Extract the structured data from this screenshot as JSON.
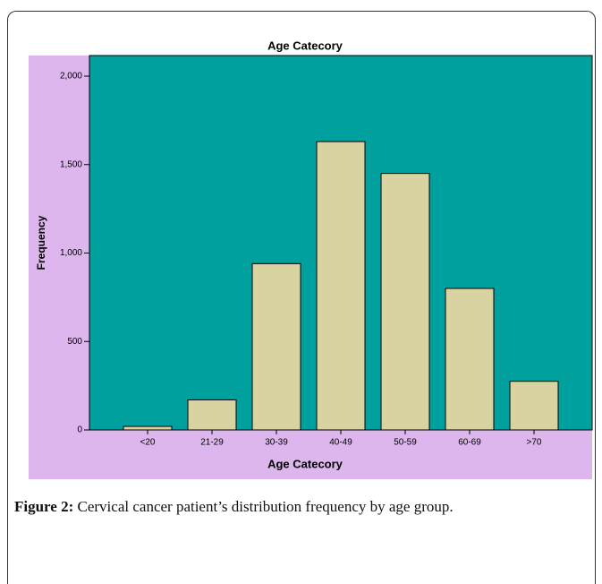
{
  "chart_data": {
    "type": "bar",
    "title": "Age Catecory",
    "x_label": "Age Catecory",
    "y_label": "Frequency",
    "categories": [
      "<20",
      "21-29",
      "30-39",
      "40-49",
      "50-59",
      "60-69",
      ">70"
    ],
    "values": [
      20,
      170,
      940,
      1630,
      1450,
      800,
      275
    ],
    "color": "#d9d3a1",
    "ylim": [
      0,
      2000
    ],
    "yticks": [
      0,
      500,
      {
        "value": 1000,
        "label": "1,000"
      },
      {
        "value": 1500,
        "label": "1,500"
      },
      {
        "value": 2000,
        "label": "2,000"
      }
    ],
    "grid": false
  },
  "caption": {
    "label": "Figure 2:",
    "text": "Cervical cancer patient’s distribution frequency by age group."
  }
}
